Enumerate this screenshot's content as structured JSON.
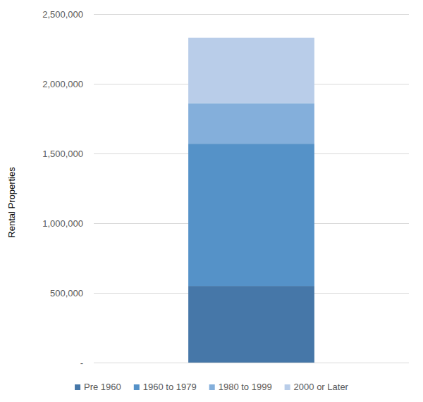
{
  "chart_data": {
    "type": "bar",
    "stacked": true,
    "y_label": "Rental Properties",
    "categories": [
      null
    ],
    "series": [
      {
        "name": "Pre 1960",
        "color": "#4677a8",
        "values": [
          550000
        ]
      },
      {
        "name": "1960 to 1979",
        "color": "#5592c8",
        "values": [
          1020000
        ]
      },
      {
        "name": "1980 to 1999",
        "color": "#84afdb",
        "values": [
          290000
        ]
      },
      {
        "name": "2000 or Later",
        "color": "#b9cde9",
        "values": [
          470000
        ]
      }
    ],
    "ylim": [
      0,
      2500000
    ],
    "yticks": [
      {
        "value": 0,
        "label": "-"
      },
      {
        "value": 500000,
        "label": "500,000"
      },
      {
        "value": 1000000,
        "label": "1,000,000"
      },
      {
        "value": 1500000,
        "label": "1,500,000"
      },
      {
        "value": 2000000,
        "label": "2,000,000"
      },
      {
        "value": 2500000,
        "label": "2,500,000"
      }
    ],
    "grid": true,
    "legend": "bottom"
  }
}
